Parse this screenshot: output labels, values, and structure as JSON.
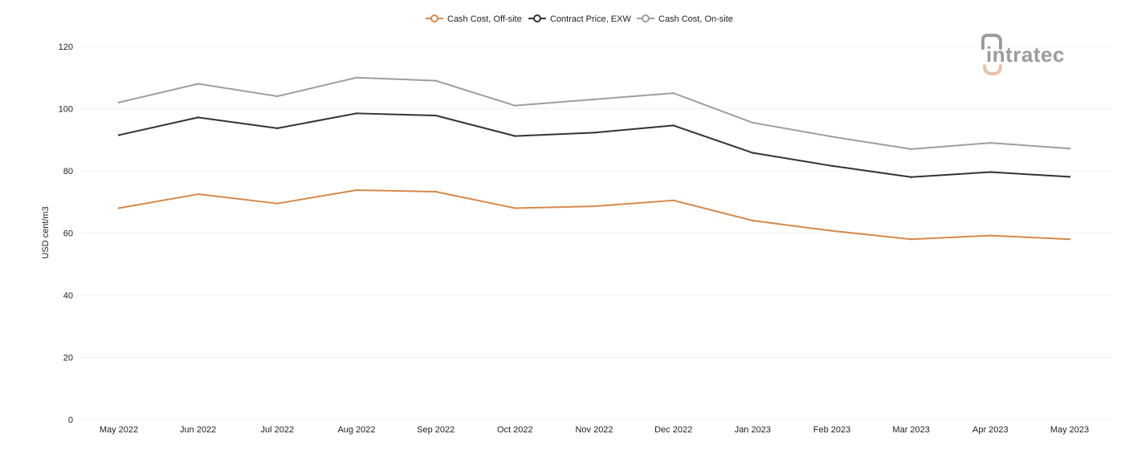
{
  "brand": {
    "name": "intratec",
    "text_color": "#9c9c9c",
    "accent_color": "#e6c3a3"
  },
  "chart_data": {
    "type": "line",
    "title": "",
    "xlabel": "",
    "ylabel": "USD cent/m3",
    "ylim": [
      0,
      120
    ],
    "yticks": [
      0,
      20,
      40,
      60,
      80,
      100,
      120
    ],
    "grid": true,
    "legend_position": "top-center",
    "categories": [
      "May 2022",
      "Jun 2022",
      "Jul 2022",
      "Aug 2022",
      "Sep 2022",
      "Oct 2022",
      "Nov 2022",
      "Dec 2022",
      "Jan 2023",
      "Feb 2023",
      "Mar 2023",
      "Apr 2023",
      "May 2023"
    ],
    "series": [
      {
        "name": "Cash Cost, Off-site",
        "color": "#d4894a",
        "values": [
          68.0,
          72.5,
          69.5,
          73.8,
          73.3,
          68.0,
          68.6,
          70.5,
          64.0,
          60.7,
          58.0,
          59.2,
          58.0
        ]
      },
      {
        "name": "Contract Price, EXW",
        "color": "#333333",
        "values": [
          91.5,
          97.2,
          93.7,
          98.5,
          97.8,
          91.2,
          92.3,
          94.6,
          85.8,
          81.6,
          78.0,
          79.6,
          78.1
        ]
      },
      {
        "name": "Cash Cost, On-site",
        "color": "#9e9e9e",
        "values": [
          102.0,
          108.0,
          104.0,
          110.0,
          109.0,
          101.0,
          103.0,
          105.0,
          95.5,
          91.0,
          87.0,
          89.0,
          87.2
        ]
      }
    ]
  }
}
